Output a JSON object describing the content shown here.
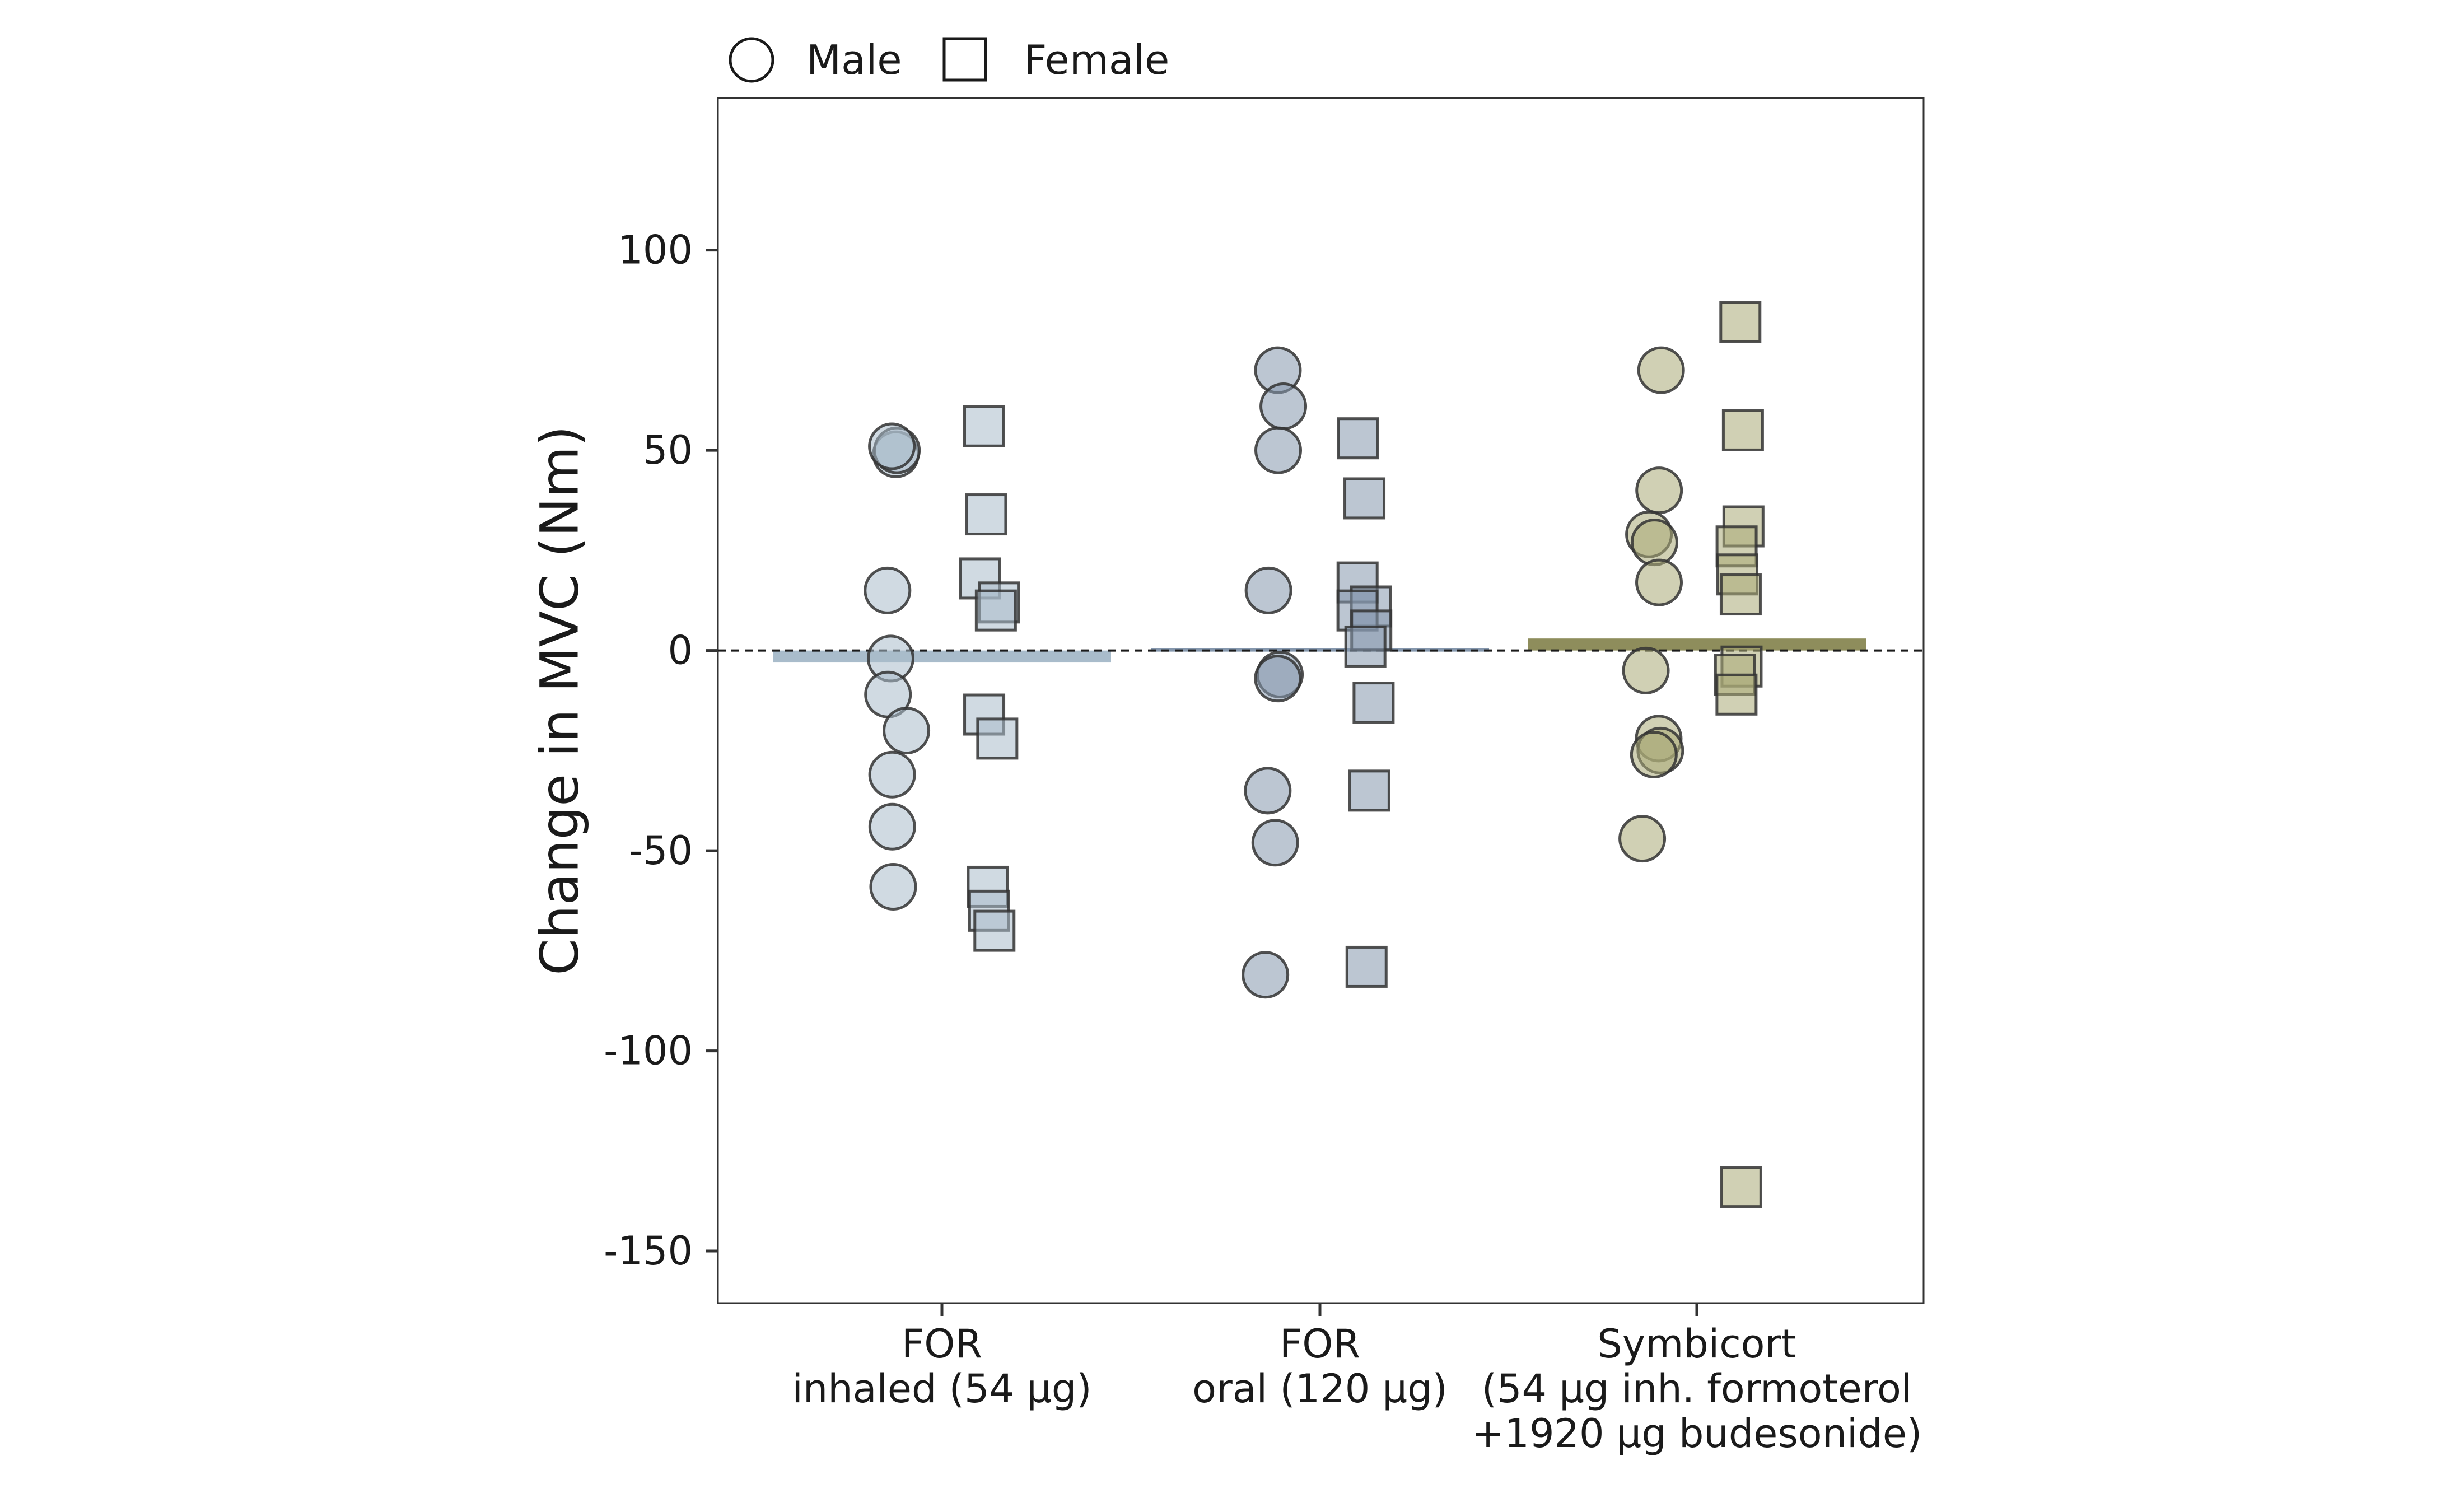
{
  "chart_data": {
    "type": "scatter",
    "ylabel": "Change in MVC (Nm)",
    "xlabel": "",
    "ylim": [
      -163,
      138
    ],
    "y_ticks": [
      100,
      50,
      0,
      -50,
      -100,
      -150
    ],
    "y_tick_labels": [
      "100",
      "50",
      "0",
      "-50",
      "-100",
      "-150"
    ],
    "reference_line": 0,
    "legend": {
      "position": "top-left",
      "entries": [
        {
          "label": "Male",
          "shape": "circle"
        },
        {
          "label": "Female",
          "shape": "square"
        }
      ]
    },
    "groups": [
      {
        "label_lines": [
          "FOR",
          "inhaled (54 µg)"
        ],
        "color": "#a9bccb",
        "mean": -3,
        "male": [
          49,
          50,
          51,
          15,
          -2,
          -11,
          -20,
          -31,
          -44,
          -59
        ],
        "female": [
          56,
          34,
          18,
          12,
          10,
          -16,
          -22,
          -59,
          -65,
          -70
        ]
      },
      {
        "label_lines": [
          "FOR",
          "oral (120 µg)"
        ],
        "color": "#8597ad",
        "mean": 0.5,
        "male": [
          70,
          61,
          50,
          15,
          -6,
          -7,
          -35,
          -48,
          -81
        ],
        "female": [
          53,
          38,
          17,
          11,
          10,
          5,
          1,
          -13,
          -35,
          -79
        ]
      },
      {
        "label_lines": [
          "Symbicort",
          "(54 µg inh. formoterol",
          "+1920 µg budesonide)"
        ],
        "color": "#a9a977",
        "bar_color": "#8e8d5c",
        "mean": 3,
        "male": [
          70,
          40,
          29,
          27,
          17,
          -5,
          -22,
          -25,
          -26,
          -47
        ],
        "female": [
          82,
          55,
          31,
          26,
          19,
          14,
          -4,
          -6,
          -11,
          -134
        ]
      }
    ]
  }
}
